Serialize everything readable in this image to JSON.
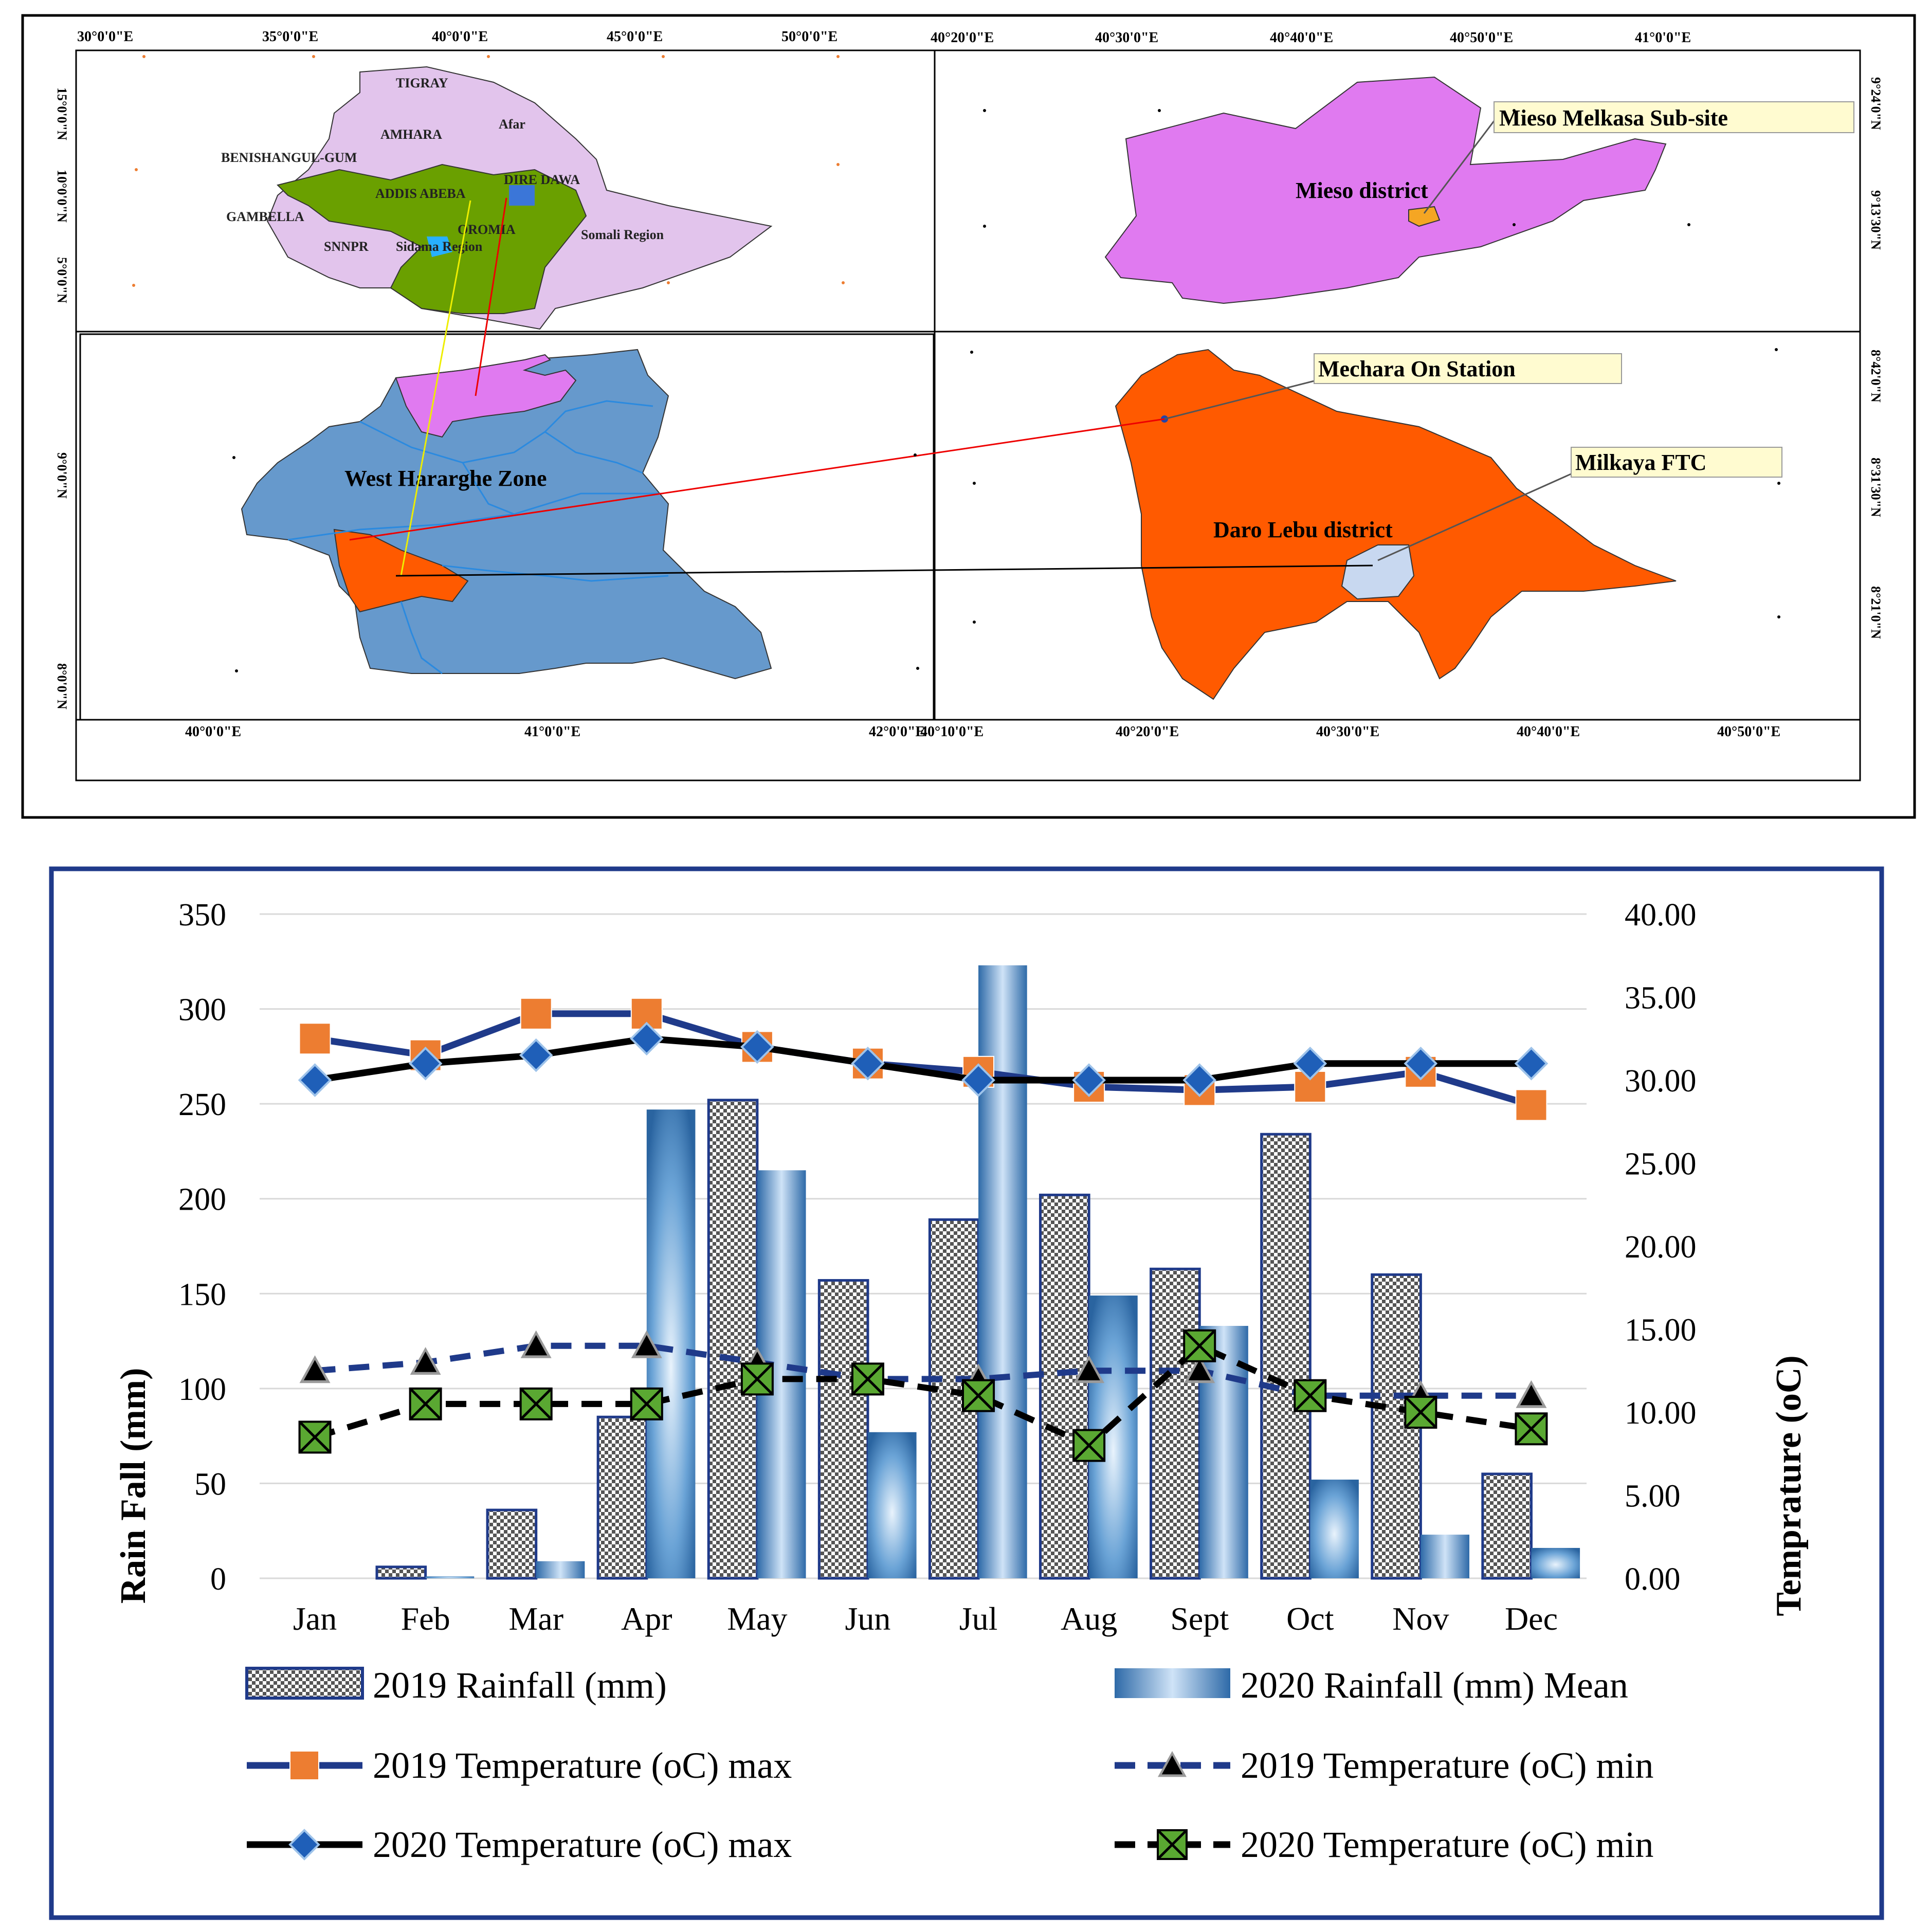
{
  "map": {
    "inset_ethiopia": {
      "top_ticks": [
        "30°0'0\"E",
        "35°0'0\"E",
        "40°0'0\"E",
        "45°0'0\"E",
        "50°0'0\"E"
      ],
      "left_ticks": [
        "15°0'0\"N",
        "10°0'0\"N",
        "5°0'0\"N"
      ],
      "regions": [
        "TIGRAY",
        "Afar",
        "AMHARA",
        "BENISHANGUL-GUM",
        "ADDIS ABEBA",
        "DIRE DAWA",
        "GAMBELLA",
        "OROMIA",
        "SNNPR",
        "Sidama Region",
        "Somali Region"
      ]
    },
    "inset_mieso": {
      "top_ticks": [
        "40°20'0\"E",
        "40°30'0\"E",
        "40°40'0\"E",
        "40°50'0\"E",
        "41°0'0\"E"
      ],
      "right_ticks": [
        "9°24'0\"N",
        "9°13'30\"N"
      ],
      "district_label": "Mieso district",
      "callout": "Mieso Melkasa Sub-site"
    },
    "inset_west_hararghe": {
      "left_ticks": [
        "9°0'0\"N",
        "8°0'0\"N"
      ],
      "bottom_ticks": [
        "40°0'0\"E",
        "41°0'0\"E",
        "42°0'0\"E"
      ],
      "zone_label": "West Hararghe Zone"
    },
    "inset_daro_lebu": {
      "bottom_ticks": [
        "40°10'0\"E",
        "40°20'0\"E",
        "40°30'0\"E",
        "40°40'0\"E",
        "40°50'0\"E"
      ],
      "right_ticks": [
        "8°42'0\"N",
        "8°31'30\"N",
        "8°21'0\"N"
      ],
      "district_label": "Daro Lebu district",
      "callouts": [
        "Mechara On Station",
        "Milkaya FTC"
      ]
    },
    "colors": {
      "ethiopia_fill": "#e2c4ec",
      "oromia_fill": "#6aa000",
      "mieso_fill": "#e07af0",
      "zone_fill": "#6699cc",
      "daro_lebu_fill": "#ff5a00",
      "site_fill": "#f5a623",
      "ftc_fill": "#c8d8f0"
    }
  },
  "chart_data": {
    "type": "bar",
    "categories": [
      "Jan",
      "Feb",
      "Mar",
      "Apr",
      "May",
      "Jun",
      "Jul",
      "Aug",
      "Sept",
      "Oct",
      "Nov",
      "Dec"
    ],
    "ylabel": "Rain Fall (mm)",
    "ylabel_right": "Temprature (oC)",
    "ylim": [
      0,
      350
    ],
    "ylim_right": [
      0,
      40
    ],
    "y_ticks": [
      "0",
      "50",
      "100",
      "150",
      "200",
      "250",
      "300",
      "350"
    ],
    "y_ticks_right": [
      "0.00",
      "5.00",
      "10.00",
      "15.00",
      "20.00",
      "25.00",
      "30.00",
      "35.00",
      "40.00"
    ],
    "grid": true,
    "legend_position": "bottom",
    "series": [
      {
        "name": "2019 Rainfall (mm)",
        "kind": "bar",
        "axis": "left",
        "values": [
          0,
          6,
          36,
          85,
          252,
          157,
          189,
          202,
          163,
          234,
          160,
          55
        ]
      },
      {
        "name": "2020 Rainfall (mm) Mean",
        "kind": "bar",
        "axis": "left",
        "values": [
          0,
          1,
          9,
          247,
          215,
          77,
          323,
          149,
          133,
          52,
          23,
          16
        ]
      },
      {
        "name": "2019 Temperature (oC) max",
        "kind": "line",
        "axis": "right",
        "dash": false,
        "values": [
          32.5,
          31.5,
          34.0,
          34.0,
          32.0,
          31.0,
          30.5,
          29.6,
          29.4,
          29.6,
          30.5,
          28.5
        ]
      },
      {
        "name": "2019 Temperature (oC) min",
        "kind": "line",
        "axis": "right",
        "dash": true,
        "values": [
          12.5,
          13.0,
          14.0,
          14.0,
          13.0,
          12.0,
          12.0,
          12.5,
          12.5,
          11.0,
          11.0,
          11.0
        ]
      },
      {
        "name": "2020 Temperature (oC) max",
        "kind": "line",
        "axis": "right",
        "dash": false,
        "values": [
          30.0,
          31.0,
          31.5,
          32.5,
          32.0,
          31.0,
          30.0,
          30.0,
          30.0,
          31.0,
          31.0,
          31.0
        ]
      },
      {
        "name": "2020 Temperature (oC) min",
        "kind": "line",
        "axis": "right",
        "dash": true,
        "values": [
          8.5,
          10.5,
          10.5,
          10.5,
          12.0,
          12.0,
          11.0,
          8.0,
          14.0,
          11.0,
          10.0,
          9.0
        ]
      }
    ],
    "colors": {
      "bar2019_outline": "#1f3a8a",
      "bar2020": "#2e6aa8",
      "max2019_line": "#1f3a8a",
      "max2019_marker": "#ed7d31",
      "min2019_line": "#1f3a8a",
      "min2019_marker": "#000000",
      "max2020_line": "#000000",
      "max2020_marker": "#1f5fb8",
      "min2020_line": "#000000",
      "min2020_marker": "#5aa832",
      "frame": "#1f3a8a"
    }
  }
}
